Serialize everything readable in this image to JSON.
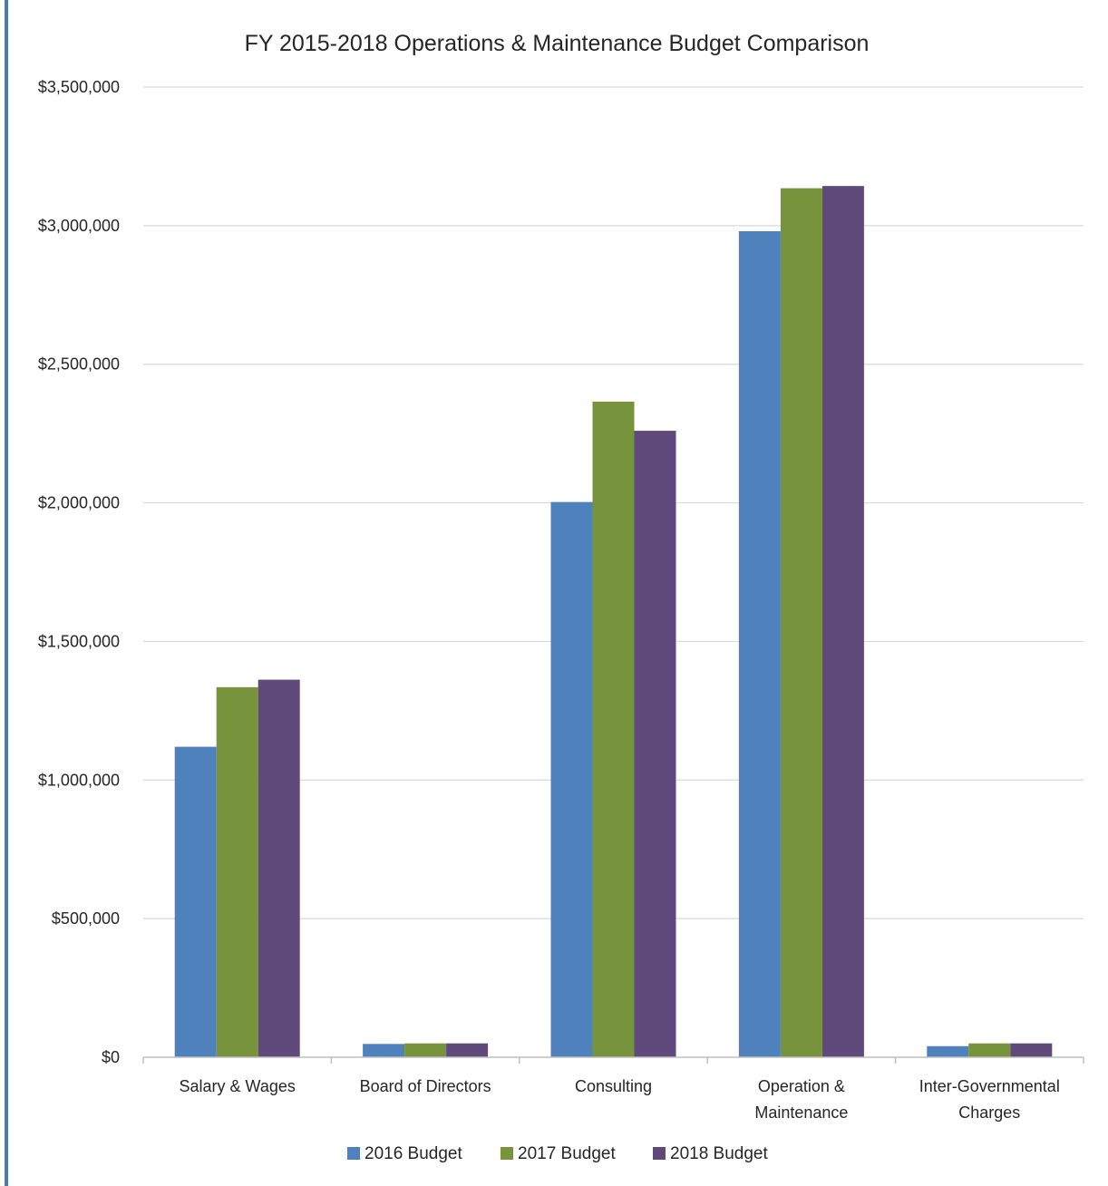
{
  "chart_data": {
    "type": "bar",
    "title": "FY 2015-2018 Operations & Maintenance Budget Comparison",
    "xlabel": "",
    "ylabel": "",
    "ylim": [
      0,
      3500000
    ],
    "yticks": [
      0,
      500000,
      1000000,
      1500000,
      2000000,
      2500000,
      3000000,
      3500000
    ],
    "ytick_labels": [
      "$0",
      "$500,000",
      "$1,000,000",
      "$1,500,000",
      "$2,000,000",
      "$2,500,000",
      "$3,000,000",
      "$3,500,000"
    ],
    "categories": [
      [
        "Salary & Wages"
      ],
      [
        "Board of Directors"
      ],
      [
        "Consulting"
      ],
      [
        "Operation &",
        "Maintenance"
      ],
      [
        "Inter-Governmental",
        "Charges"
      ]
    ],
    "series": [
      {
        "name": "2016 Budget",
        "color": "#4f81bd",
        "values": [
          1120000,
          48000,
          2003000,
          2980000,
          40000
        ]
      },
      {
        "name": "2017 Budget",
        "color": "#77933c",
        "values": [
          1335000,
          50000,
          2365000,
          3135000,
          50000
        ]
      },
      {
        "name": "2018 Budget",
        "color": "#604a7b",
        "values": [
          1362000,
          50000,
          2260000,
          3143000,
          50000
        ]
      }
    ],
    "grid": true,
    "legend_position": "bottom"
  }
}
